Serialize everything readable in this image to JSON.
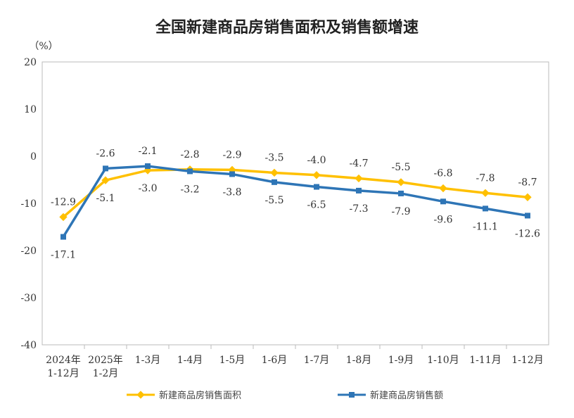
{
  "chart_data": {
    "type": "line",
    "title": "全国新建商品房销售面积及销售额增速",
    "ylabel": "（%）",
    "ylim": [
      -40,
      20
    ],
    "yticks": [
      "20",
      "10",
      "0",
      "-10",
      "-20",
      "-30",
      "-40"
    ],
    "categories": [
      [
        "2024年",
        "1-12月"
      ],
      [
        "2025年",
        "1-2月"
      ],
      [
        "1-3月"
      ],
      [
        "1-4月"
      ],
      [
        "1-5月"
      ],
      [
        "1-6月"
      ],
      [
        "1-7月"
      ],
      [
        "1-8月"
      ],
      [
        "1-9月"
      ],
      [
        "1-10月"
      ],
      [
        "1-11月"
      ],
      [
        "1-12月"
      ]
    ],
    "series": [
      {
        "name": "新建商品房销售面积",
        "color": "#FFC000",
        "values": [
          -12.9,
          -5.1,
          -3.0,
          -2.8,
          -2.9,
          -3.5,
          -4.0,
          -4.7,
          -5.5,
          -6.8,
          -7.8,
          -8.7
        ],
        "labels": [
          "-12.9",
          "-5.1",
          "-3.0",
          "-2.8",
          "-2.9",
          "-3.5",
          "-4.0",
          "-4.7",
          "-5.5",
          "-6.8",
          "-7.8",
          "-8.7"
        ]
      },
      {
        "name": "新建商品房销售额",
        "color": "#2E75B6",
        "values": [
          -17.1,
          -2.6,
          -2.1,
          -3.2,
          -3.8,
          -5.5,
          -6.5,
          -7.3,
          -7.9,
          -9.6,
          -11.1,
          -12.6
        ],
        "labels": [
          "-17.1",
          "-2.6",
          "-2.1",
          "-3.2",
          "-3.8",
          "-5.5",
          "-6.5",
          "-7.3",
          "-7.9",
          "-9.6",
          "-11.1",
          "-12.6"
        ]
      }
    ],
    "legend": "bottom",
    "grid": false
  }
}
